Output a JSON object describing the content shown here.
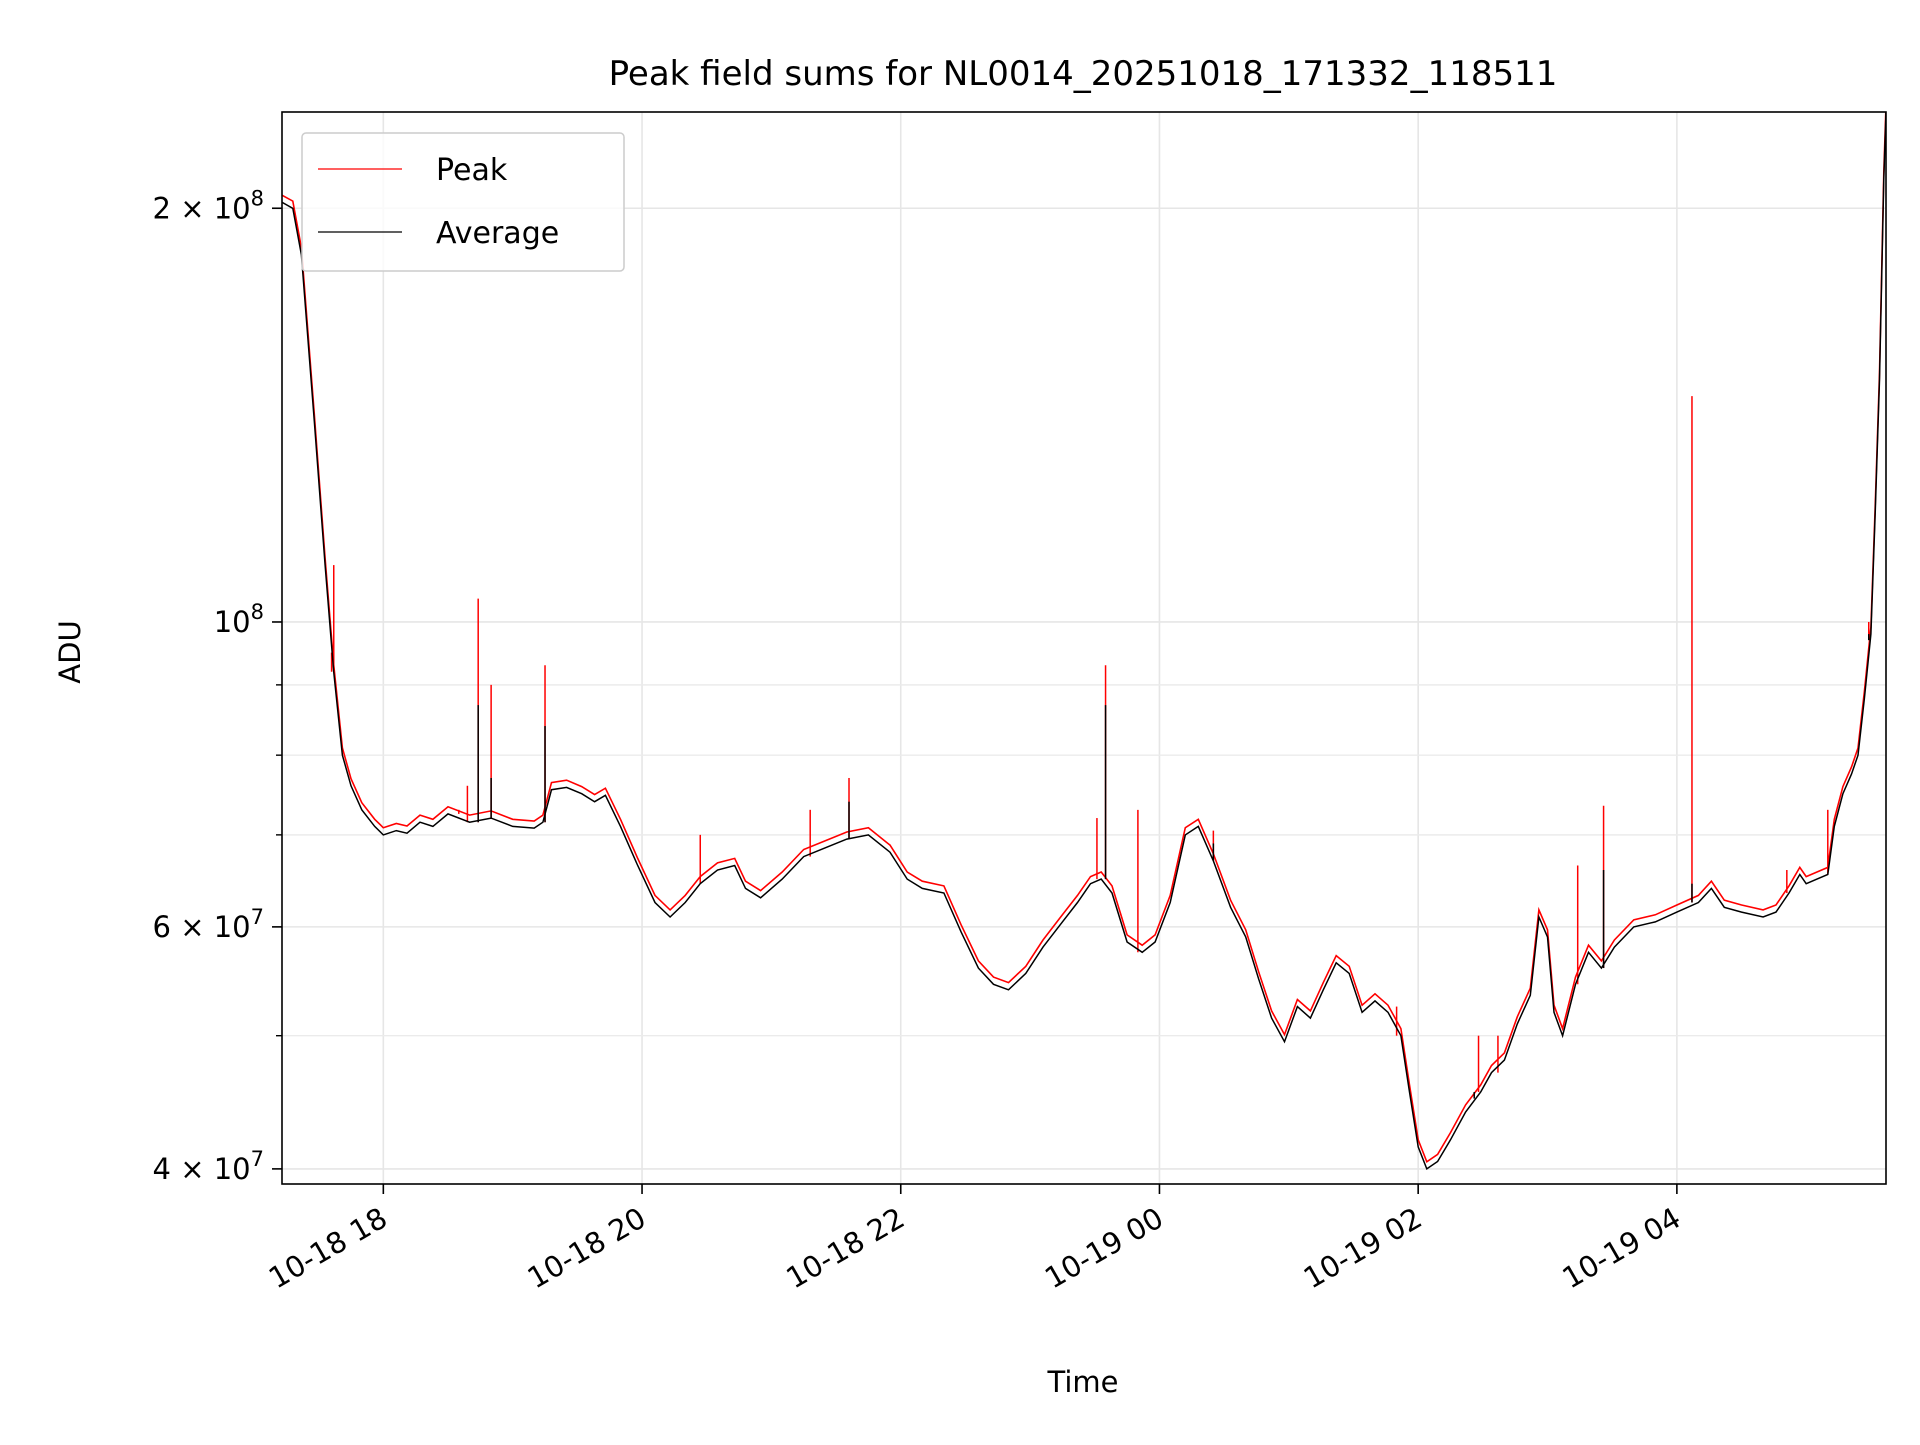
{
  "chart_data": {
    "type": "line",
    "title": "Peak field sums for NL0014_20251018_171332_118511",
    "xlabel": "Time",
    "ylabel": "ADU",
    "yscale": "log",
    "ylim": [
      39000000,
      235000000
    ],
    "xlim": [
      "2025-10-18 17:13",
      "2025-10-19 05:37"
    ],
    "grid": true,
    "legend_position": "top-left",
    "x_ticks": [
      {
        "value": "2025-10-18 18:00",
        "label": "10-18 18"
      },
      {
        "value": "2025-10-18 20:00",
        "label": "10-18 20"
      },
      {
        "value": "2025-10-18 22:00",
        "label": "10-18 22"
      },
      {
        "value": "2025-10-19 00:00",
        "label": "10-19 00"
      },
      {
        "value": "2025-10-19 02:00",
        "label": "10-19 02"
      },
      {
        "value": "2025-10-19 04:00",
        "label": "10-19 04"
      }
    ],
    "y_ticks_major": [
      {
        "value": 40000000,
        "base": "4 × 10",
        "exp": "7"
      },
      {
        "value": 60000000,
        "base": "6 × 10",
        "exp": "7"
      },
      {
        "value": 100000000,
        "base": "10",
        "exp": "8"
      },
      {
        "value": 200000000,
        "base": "2 × 10",
        "exp": "8"
      }
    ],
    "y_ticks_minor": [
      50000000,
      70000000,
      80000000,
      90000000
    ],
    "colors": {
      "peak": "#ff0000",
      "average": "#000000"
    },
    "series": [
      {
        "name": "Average",
        "color": "#000000",
        "points": [
          [
            "2025-10-18 17:13",
            202000000
          ],
          [
            "2025-10-18 17:18",
            200000000
          ],
          [
            "2025-10-18 17:22",
            185000000
          ],
          [
            "2025-10-18 17:28",
            140000000
          ],
          [
            "2025-10-18 17:33",
            110000000
          ],
          [
            "2025-10-18 17:37",
            92000000
          ],
          [
            "2025-10-18 17:41",
            80000000
          ],
          [
            "2025-10-18 17:45",
            76000000
          ],
          [
            "2025-10-18 17:50",
            73000000
          ],
          [
            "2025-10-18 17:56",
            71000000
          ],
          [
            "2025-10-18 18:00",
            70000000
          ],
          [
            "2025-10-18 18:06",
            70500000
          ],
          [
            "2025-10-18 18:11",
            70200000
          ],
          [
            "2025-10-18 18:17",
            71500000
          ],
          [
            "2025-10-18 18:23",
            71000000
          ],
          [
            "2025-10-18 18:30",
            72500000
          ],
          [
            "2025-10-18 18:40",
            71500000
          ],
          [
            "2025-10-18 18:50",
            72000000
          ],
          [
            "2025-10-18 19:00",
            71000000
          ],
          [
            "2025-10-18 19:10",
            70800000
          ],
          [
            "2025-10-18 19:14",
            71500000
          ],
          [
            "2025-10-18 19:18",
            75500000
          ],
          [
            "2025-10-18 19:25",
            75800000
          ],
          [
            "2025-10-18 19:32",
            75000000
          ],
          [
            "2025-10-18 19:38",
            74000000
          ],
          [
            "2025-10-18 19:43",
            74800000
          ],
          [
            "2025-10-18 19:50",
            71000000
          ],
          [
            "2025-10-18 19:58",
            66500000
          ],
          [
            "2025-10-18 20:06",
            62500000
          ],
          [
            "2025-10-18 20:13",
            61000000
          ],
          [
            "2025-10-18 20:20",
            62500000
          ],
          [
            "2025-10-18 20:27",
            64500000
          ],
          [
            "2025-10-18 20:35",
            66000000
          ],
          [
            "2025-10-18 20:43",
            66500000
          ],
          [
            "2025-10-18 20:48",
            64000000
          ],
          [
            "2025-10-18 20:55",
            63000000
          ],
          [
            "2025-10-18 21:05",
            65000000
          ],
          [
            "2025-10-18 21:15",
            67500000
          ],
          [
            "2025-10-18 21:25",
            68500000
          ],
          [
            "2025-10-18 21:35",
            69500000
          ],
          [
            "2025-10-18 21:45",
            70000000
          ],
          [
            "2025-10-18 21:55",
            68000000
          ],
          [
            "2025-10-18 22:03",
            65000000
          ],
          [
            "2025-10-18 22:10",
            64000000
          ],
          [
            "2025-10-18 22:20",
            63500000
          ],
          [
            "2025-10-18 22:28",
            59500000
          ],
          [
            "2025-10-18 22:36",
            56000000
          ],
          [
            "2025-10-18 22:43",
            54500000
          ],
          [
            "2025-10-18 22:50",
            54000000
          ],
          [
            "2025-10-18 22:58",
            55500000
          ],
          [
            "2025-10-18 23:06",
            58000000
          ],
          [
            "2025-10-18 23:15",
            60500000
          ],
          [
            "2025-10-18 23:22",
            62500000
          ],
          [
            "2025-10-18 23:28",
            64500000
          ],
          [
            "2025-10-18 23:33",
            65000000
          ],
          [
            "2025-10-18 23:38",
            63500000
          ],
          [
            "2025-10-18 23:45",
            58500000
          ],
          [
            "2025-10-18 23:52",
            57500000
          ],
          [
            "2025-10-18 23:58",
            58500000
          ],
          [
            "2025-10-19 00:05",
            62500000
          ],
          [
            "2025-10-19 00:12",
            70000000
          ],
          [
            "2025-10-19 00:18",
            71000000
          ],
          [
            "2025-10-19 00:25",
            67000000
          ],
          [
            "2025-10-19 00:33",
            62000000
          ],
          [
            "2025-10-19 00:40",
            59000000
          ],
          [
            "2025-10-19 00:46",
            55000000
          ],
          [
            "2025-10-19 00:52",
            51500000
          ],
          [
            "2025-10-19 00:58",
            49500000
          ],
          [
            "2025-10-19 01:04",
            52500000
          ],
          [
            "2025-10-19 01:10",
            51500000
          ],
          [
            "2025-10-19 01:16",
            54000000
          ],
          [
            "2025-10-19 01:22",
            56500000
          ],
          [
            "2025-10-19 01:28",
            55500000
          ],
          [
            "2025-10-19 01:34",
            52000000
          ],
          [
            "2025-10-19 01:40",
            53000000
          ],
          [
            "2025-10-19 01:46",
            52000000
          ],
          [
            "2025-10-19 01:52",
            50000000
          ],
          [
            "2025-10-19 01:56",
            45500000
          ],
          [
            "2025-10-19 02:00",
            41500000
          ],
          [
            "2025-10-19 02:04",
            40000000
          ],
          [
            "2025-10-19 02:09",
            40500000
          ],
          [
            "2025-10-19 02:15",
            42000000
          ],
          [
            "2025-10-19 02:22",
            44000000
          ],
          [
            "2025-10-19 02:29",
            45500000
          ],
          [
            "2025-10-19 02:34",
            47000000
          ],
          [
            "2025-10-19 02:40",
            48000000
          ],
          [
            "2025-10-19 02:46",
            51000000
          ],
          [
            "2025-10-19 02:52",
            53500000
          ],
          [
            "2025-10-19 02:56",
            61000000
          ],
          [
            "2025-10-19 03:00",
            59000000
          ],
          [
            "2025-10-19 03:03",
            52000000
          ],
          [
            "2025-10-19 03:07",
            50000000
          ],
          [
            "2025-10-19 03:13",
            54500000
          ],
          [
            "2025-10-19 03:19",
            57500000
          ],
          [
            "2025-10-19 03:25",
            56000000
          ],
          [
            "2025-10-19 03:31",
            58000000
          ],
          [
            "2025-10-19 03:40",
            60000000
          ],
          [
            "2025-10-19 03:50",
            60500000
          ],
          [
            "2025-10-19 04:00",
            61500000
          ],
          [
            "2025-10-19 04:10",
            62500000
          ],
          [
            "2025-10-19 04:16",
            64000000
          ],
          [
            "2025-10-19 04:22",
            62000000
          ],
          [
            "2025-10-19 04:30",
            61500000
          ],
          [
            "2025-10-19 04:40",
            61000000
          ],
          [
            "2025-10-19 04:46",
            61500000
          ],
          [
            "2025-10-19 04:52",
            63500000
          ],
          [
            "2025-10-19 04:57",
            65500000
          ],
          [
            "2025-10-19 05:00",
            64500000
          ],
          [
            "2025-10-19 05:05",
            65000000
          ],
          [
            "2025-10-19 05:10",
            65500000
          ],
          [
            "2025-10-19 05:13",
            71000000
          ],
          [
            "2025-10-19 05:17",
            75000000
          ],
          [
            "2025-10-19 05:21",
            77500000
          ],
          [
            "2025-10-19 05:24",
            80000000
          ],
          [
            "2025-10-19 05:27",
            88000000
          ],
          [
            "2025-10-19 05:30",
            98000000
          ],
          [
            "2025-10-19 05:32",
            120000000
          ],
          [
            "2025-10-19 05:34",
            150000000
          ],
          [
            "2025-10-19 05:36",
            210000000
          ],
          [
            "2025-10-19 05:37",
            235000000
          ]
        ],
        "spikes": [
          [
            "2025-10-18 17:37",
            92000000
          ],
          [
            "2025-10-18 18:44",
            87000000
          ],
          [
            "2025-10-18 18:50",
            77000000
          ],
          [
            "2025-10-18 19:15",
            84000000
          ],
          [
            "2025-10-18 21:36",
            74000000
          ],
          [
            "2025-10-18 23:35",
            87000000
          ],
          [
            "2025-10-19 00:25",
            69000000
          ],
          [
            "2025-10-19 02:26",
            45000000
          ],
          [
            "2025-10-19 03:26",
            66000000
          ],
          [
            "2025-10-19 04:07",
            64500000
          ],
          [
            "2025-10-19 05:29",
            97000000
          ]
        ]
      },
      {
        "name": "Peak",
        "color": "#ff0000",
        "offset_factor": 1.012,
        "spikes": [
          [
            "2025-10-18 17:36",
            95000000
          ],
          [
            "2025-10-18 17:37",
            110000000
          ],
          [
            "2025-10-18 18:35",
            73000000
          ],
          [
            "2025-10-18 18:39",
            76000000
          ],
          [
            "2025-10-18 18:44",
            104000000
          ],
          [
            "2025-10-18 18:50",
            90000000
          ],
          [
            "2025-10-18 19:15",
            93000000
          ],
          [
            "2025-10-18 20:27",
            70000000
          ],
          [
            "2025-10-18 21:18",
            73000000
          ],
          [
            "2025-10-18 21:36",
            77000000
          ],
          [
            "2025-10-18 23:31",
            72000000
          ],
          [
            "2025-10-18 23:35",
            93000000
          ],
          [
            "2025-10-18 23:50",
            73000000
          ],
          [
            "2025-10-19 00:25",
            70500000
          ],
          [
            "2025-10-19 01:50",
            52500000
          ],
          [
            "2025-10-19 02:28",
            50000000
          ],
          [
            "2025-10-19 02:37",
            50000000
          ],
          [
            "2025-10-19 03:14",
            66500000
          ],
          [
            "2025-10-19 03:26",
            73500000
          ],
          [
            "2025-10-19 04:07",
            146000000
          ],
          [
            "2025-10-19 04:51",
            66000000
          ],
          [
            "2025-10-19 05:10",
            73000000
          ],
          [
            "2025-10-19 05:29",
            100000000
          ]
        ]
      }
    ]
  }
}
